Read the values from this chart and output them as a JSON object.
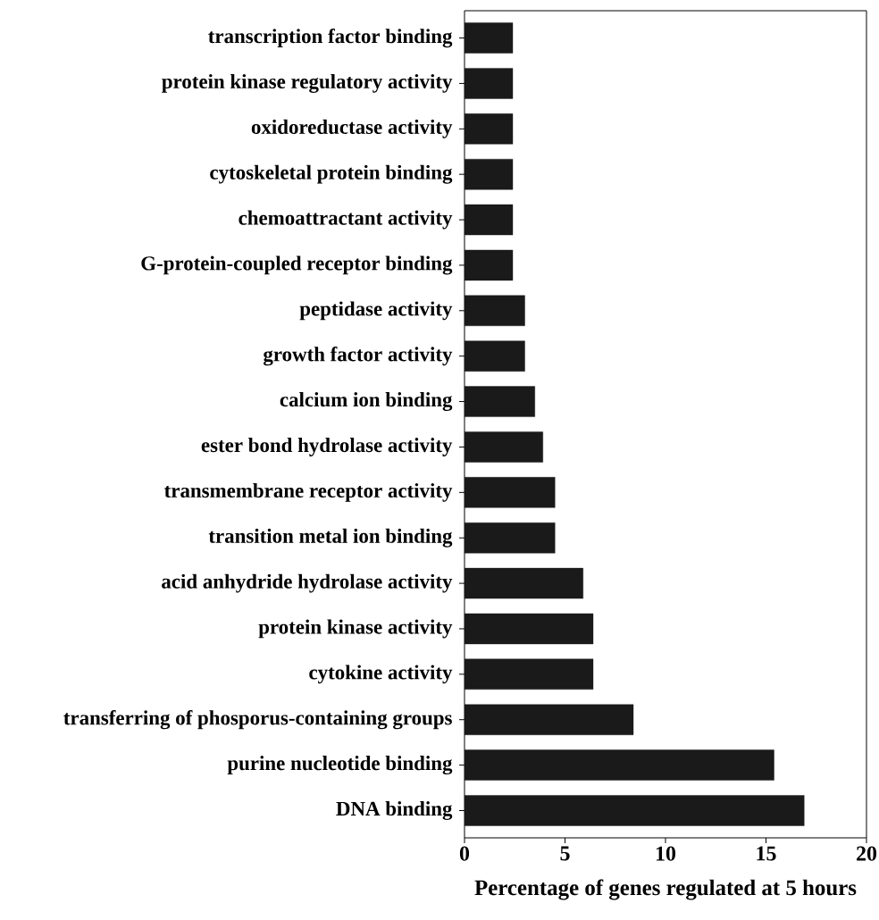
{
  "chart_data": {
    "type": "bar",
    "orientation": "horizontal",
    "xlabel": "Percentage of genes regulated at 5 hours",
    "categories": [
      "transcription factor binding",
      "protein kinase regulatory activity",
      "oxidoreductase activity",
      "cytoskeletal protein binding",
      "chemoattractant activity",
      "G-protein-coupled receptor binding",
      "peptidase activity",
      "growth factor activity",
      "calcium ion binding",
      "ester bond hydrolase activity",
      "transmembrane receptor activity",
      "transition metal ion binding",
      "acid anhydride hydrolase activity",
      "protein kinase activity",
      "cytokine activity",
      "transferring of phosporus-containing groups",
      "purine nucleotide binding",
      "DNA binding"
    ],
    "values": [
      2.4,
      2.4,
      2.4,
      2.4,
      2.4,
      2.4,
      3.0,
      3.0,
      3.5,
      3.9,
      4.5,
      4.5,
      5.9,
      6.4,
      6.4,
      8.4,
      15.4,
      16.9
    ],
    "color": "#1a1a1a",
    "xlim": [
      0,
      20
    ],
    "xticks": [
      0,
      5,
      10,
      15,
      20
    ],
    "grid": false
  }
}
